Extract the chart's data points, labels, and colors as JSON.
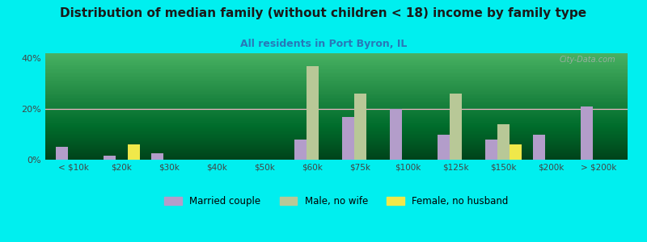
{
  "title": "Distribution of median family (without children < 18) income by family type",
  "subtitle": "All residents in Port Byron, IL",
  "background_color": "#00EFEF",
  "categories": [
    "< $10k",
    "$20k",
    "$30k",
    "$40k",
    "$50k",
    "$60k",
    "$75k",
    "$100k",
    "$125k",
    "$150k",
    "$200k",
    "> $200k"
  ],
  "married_couple": [
    5,
    1.5,
    2.5,
    0,
    0,
    8,
    17,
    20,
    10,
    8,
    10,
    21
  ],
  "male_no_wife": [
    0,
    0,
    0,
    0,
    0,
    37,
    26,
    0,
    26,
    14,
    0,
    0
  ],
  "female_no_husband": [
    0,
    6,
    0,
    0,
    0,
    0,
    0,
    0,
    0,
    6,
    0,
    0
  ],
  "married_color": "#b39dca",
  "male_color": "#b8c897",
  "female_color": "#f0e84a",
  "ylim": [
    0,
    42
  ],
  "yticks": [
    0,
    20,
    40
  ],
  "yticklabels": [
    "0%",
    "20%",
    "40%"
  ],
  "grid_color": "#f5b8c8",
  "watermark": "City-Data.com",
  "legend_labels": [
    "Married couple",
    "Male, no wife",
    "Female, no husband"
  ],
  "plot_bg_top": "#c8e8c0",
  "plot_bg_bottom": "#f0faf0"
}
